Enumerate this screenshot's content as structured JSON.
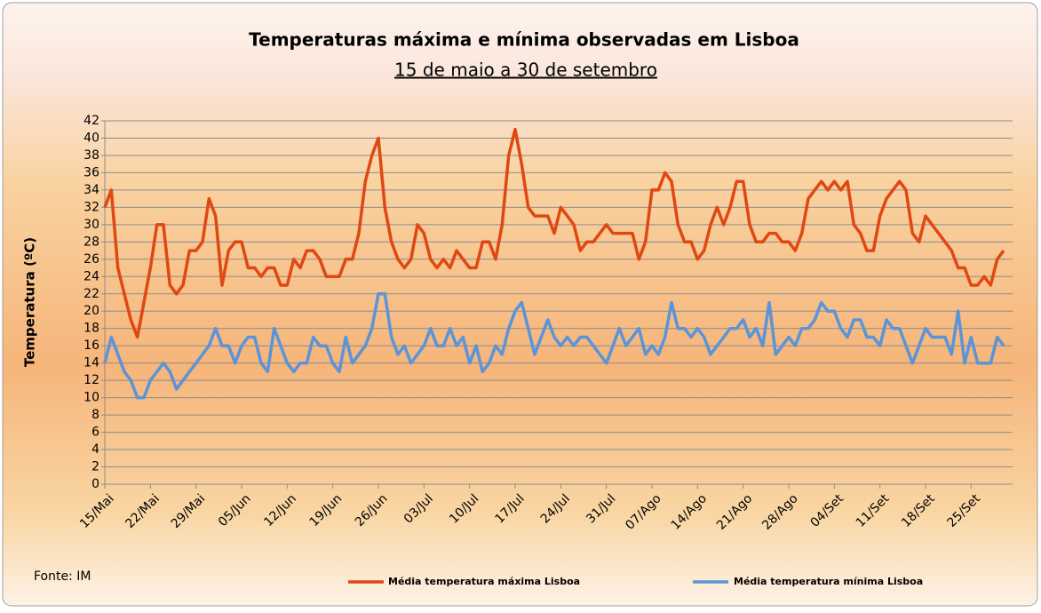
{
  "chart_data": {
    "type": "line",
    "title": "Temperaturas máxima e mínima observadas em Lisboa",
    "subtitle": "15 de maio a 30 de setembro",
    "y_label": "Temperatura (ºC)",
    "source": "Fonte: IM",
    "categories": [
      "15/Mai",
      null,
      null,
      null,
      null,
      null,
      null,
      "22/Mai",
      null,
      null,
      null,
      null,
      null,
      null,
      "29/Mai",
      null,
      null,
      null,
      null,
      null,
      null,
      "05/Jun",
      null,
      null,
      null,
      null,
      null,
      null,
      "12/Jun",
      null,
      null,
      null,
      null,
      null,
      null,
      "19/Jun",
      null,
      null,
      null,
      null,
      null,
      null,
      "26/Jun",
      null,
      null,
      null,
      null,
      null,
      null,
      "03/Jul",
      null,
      null,
      null,
      null,
      null,
      null,
      "10/Jul",
      null,
      null,
      null,
      null,
      null,
      null,
      "17/Jul",
      null,
      null,
      null,
      null,
      null,
      null,
      "24/Jul",
      null,
      null,
      null,
      null,
      null,
      null,
      "31/Jul",
      null,
      null,
      null,
      null,
      null,
      null,
      "07/Ago",
      null,
      null,
      null,
      null,
      null,
      null,
      "14/Ago",
      null,
      null,
      null,
      null,
      null,
      null,
      "21/Ago",
      null,
      null,
      null,
      null,
      null,
      null,
      "28/Ago",
      null,
      null,
      null,
      null,
      null,
      null,
      "04/Set",
      null,
      null,
      null,
      null,
      null,
      null,
      "11/Set",
      null,
      null,
      null,
      null,
      null,
      null,
      "18/Set",
      null,
      null,
      null,
      null,
      null,
      null,
      "25/Set",
      null,
      null,
      null,
      null,
      null
    ],
    "series": [
      {
        "name": "Média temperatura máxima Lisboa",
        "color": "#e04812",
        "values": [
          32,
          34,
          25,
          22,
          19,
          17,
          21,
          25,
          30,
          30,
          23,
          22,
          23,
          27,
          27,
          28,
          33,
          31,
          23,
          27,
          28,
          28,
          25,
          25,
          24,
          25,
          25,
          23,
          23,
          26,
          25,
          27,
          27,
          26,
          24,
          24,
          24,
          26,
          26,
          29,
          35,
          38,
          40,
          32,
          28,
          26,
          25,
          26,
          30,
          29,
          26,
          25,
          26,
          25,
          27,
          26,
          25,
          25,
          28,
          28,
          26,
          30,
          38,
          41,
          37,
          32,
          31,
          31,
          31,
          29,
          32,
          31,
          30,
          27,
          28,
          28,
          29,
          30,
          29,
          29,
          29,
          29,
          26,
          28,
          34,
          34,
          36,
          35,
          30,
          28,
          28,
          26,
          27,
          30,
          32,
          30,
          32,
          35,
          35,
          30,
          28,
          28,
          29,
          29,
          28,
          28,
          27,
          29,
          33,
          34,
          35,
          34,
          35,
          34,
          35,
          30,
          29,
          27,
          27,
          31,
          33,
          34,
          35,
          34,
          29,
          28,
          31,
          30,
          29,
          28,
          27,
          25,
          25,
          23,
          23,
          24,
          23,
          26,
          27
        ]
      },
      {
        "name": "Média temperatura mínima Lisboa",
        "color": "#5b94d8",
        "values": [
          14,
          17,
          15,
          13,
          12,
          10,
          10,
          12,
          13,
          14,
          13,
          11,
          12,
          13,
          14,
          15,
          16,
          18,
          16,
          16,
          14,
          16,
          17,
          17,
          14,
          13,
          18,
          16,
          14,
          13,
          14,
          14,
          17,
          16,
          16,
          14,
          13,
          17,
          14,
          15,
          16,
          18,
          22,
          22,
          17,
          15,
          16,
          14,
          15,
          16,
          18,
          16,
          16,
          18,
          16,
          17,
          14,
          16,
          13,
          14,
          16,
          15,
          18,
          20,
          21,
          18,
          15,
          17,
          19,
          17,
          16,
          17,
          16,
          17,
          17,
          16,
          15,
          14,
          16,
          18,
          16,
          17,
          18,
          15,
          16,
          15,
          17,
          21,
          18,
          18,
          17,
          18,
          17,
          15,
          16,
          17,
          18,
          18,
          19,
          17,
          18,
          16,
          21,
          15,
          16,
          17,
          16,
          18,
          18,
          19,
          21,
          20,
          20,
          18,
          17,
          19,
          19,
          17,
          17,
          16,
          19,
          18,
          18,
          16,
          14,
          16,
          18,
          17,
          17,
          17,
          15,
          20,
          14,
          17,
          14,
          14,
          14,
          17,
          16
        ]
      }
    ],
    "ylim": [
      0,
      42
    ],
    "yticks": [
      0,
      2,
      4,
      6,
      8,
      10,
      12,
      14,
      16,
      18,
      20,
      22,
      24,
      26,
      28,
      30,
      32,
      34,
      36,
      38,
      40,
      42
    ],
    "grid": true
  }
}
